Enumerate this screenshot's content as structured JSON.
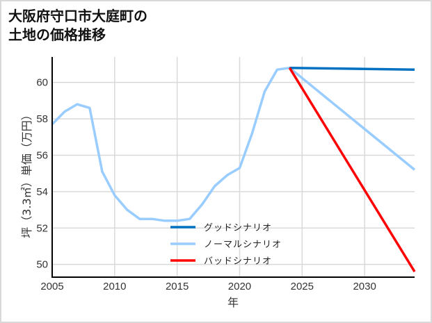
{
  "title": {
    "line1": "大阪府守口市大庭町の",
    "line2": "土地の価格推移"
  },
  "colors": {
    "good": "#0070c0",
    "normal": "#99ccff",
    "bad": "#ff0000",
    "grid": "#d9d9d9",
    "axis": "#000000",
    "frame": "#d9d9d9"
  },
  "chart_data": {
    "type": "line",
    "title": "大阪府守口市大庭町の土地の価格推移",
    "xlabel": "年",
    "ylabel": "坪（3.3㎡）単価（万円）",
    "xlim": [
      2005,
      2034
    ],
    "ylim": [
      49.3,
      61.4
    ],
    "x_ticks": [
      2005,
      2010,
      2015,
      2020,
      2025,
      2030
    ],
    "y_ticks": [
      50,
      52,
      54,
      56,
      58,
      60
    ],
    "grid": true,
    "legend_position": "lower center (inside plot)",
    "series": [
      {
        "name": "グッドシナリオ",
        "color": "#0070c0",
        "x": [
          2024,
          2034
        ],
        "values": [
          60.8,
          60.7
        ]
      },
      {
        "name": "ノーマルシナリオ",
        "color": "#99ccff",
        "x": [
          2005,
          2006,
          2007,
          2008,
          2009,
          2010,
          2011,
          2012,
          2013,
          2014,
          2015,
          2016,
          2017,
          2018,
          2019,
          2020,
          2021,
          2022,
          2023,
          2024,
          2034
        ],
        "values": [
          57.7,
          58.4,
          58.8,
          58.6,
          55.1,
          53.8,
          53.0,
          52.5,
          52.5,
          52.4,
          52.4,
          52.5,
          53.3,
          54.3,
          54.9,
          55.3,
          57.2,
          59.5,
          60.7,
          60.8,
          55.2
        ]
      },
      {
        "name": "バッドシナリオ",
        "color": "#ff0000",
        "x": [
          2024,
          2034
        ],
        "values": [
          60.8,
          49.6
        ]
      }
    ]
  }
}
